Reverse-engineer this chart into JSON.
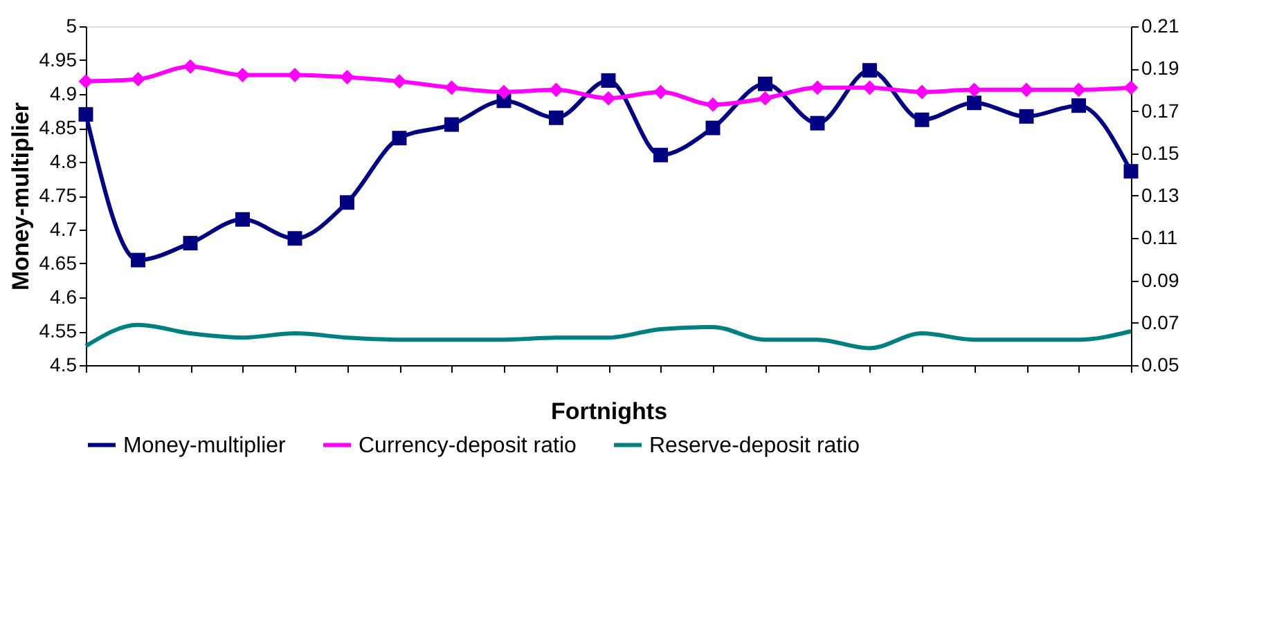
{
  "chart_data": {
    "type": "line",
    "xlabel": "Fortnights",
    "ylabel": "Money-multiplier",
    "categories": [
      null,
      null,
      null,
      null,
      null,
      null,
      null,
      null,
      null,
      null,
      null,
      null,
      null,
      null,
      null,
      null,
      null,
      null,
      null,
      null,
      null
    ],
    "series": [
      {
        "name": "Money-multiplier",
        "color": "#000080",
        "marker": "square",
        "values": [
          4.87,
          4.655,
          4.68,
          4.715,
          4.687,
          4.74,
          4.835,
          4.855,
          4.89,
          4.865,
          4.92,
          4.81,
          4.85,
          4.915,
          4.857,
          4.935,
          4.862,
          4.887,
          4.867,
          4.883,
          4.786
        ]
      },
      {
        "name": "Currency-deposit ratio",
        "color": "#ff00ff",
        "marker": "diamond",
        "axis": "y2",
        "values": [
          0.184,
          0.185,
          0.191,
          0.187,
          0.187,
          0.186,
          0.184,
          0.181,
          0.179,
          0.18,
          0.176,
          0.179,
          0.173,
          0.176,
          0.181,
          0.181,
          0.179,
          0.18,
          0.18,
          0.18,
          0.181
        ]
      },
      {
        "name": "Reserve-deposit ratio",
        "color": "#008080",
        "marker": "none",
        "axis": "y2",
        "values": [
          0.059,
          0.069,
          0.065,
          0.063,
          0.065,
          0.063,
          0.062,
          0.062,
          0.062,
          0.063,
          0.063,
          0.067,
          0.068,
          0.062,
          0.062,
          0.058,
          0.065,
          0.062,
          0.062,
          0.062,
          0.066
        ]
      }
    ],
    "ylim": [
      4.5,
      5
    ],
    "yticks": [
      4.5,
      4.55,
      4.6,
      4.65,
      4.7,
      4.75,
      4.8,
      4.85,
      4.9,
      4.95,
      5
    ],
    "y2lim": [
      0.05,
      0.21
    ],
    "y2ticks": [
      0.05,
      0.07,
      0.09,
      0.11,
      0.13,
      0.15,
      0.17,
      0.19,
      0.21
    ],
    "tick_labels": "y",
    "grid": false,
    "legend": "bottom",
    "line_style": "solid"
  }
}
